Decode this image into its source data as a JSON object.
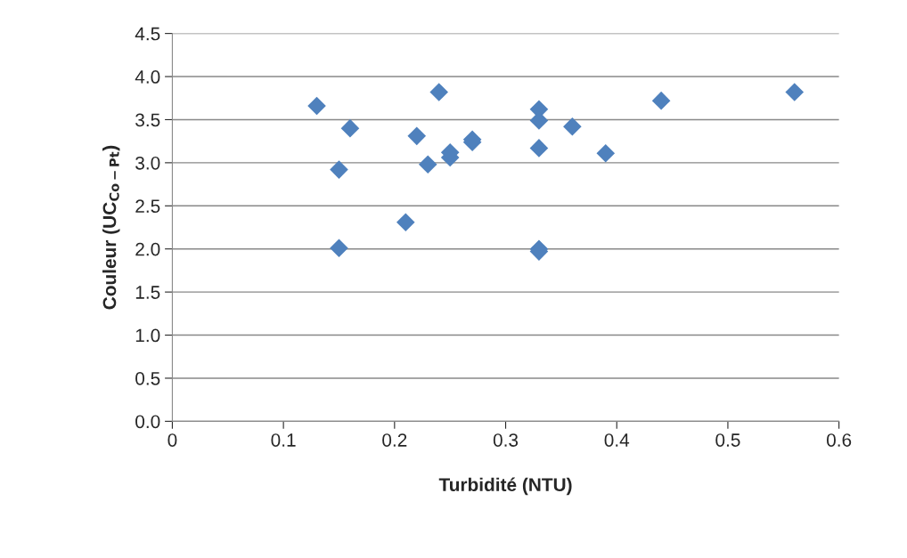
{
  "chart_data": {
    "type": "scatter",
    "xlabel": "Turbidité (NTU)",
    "ylabel": "Couleur (UC$_{Co−Pt}$)",
    "marker": "diamond",
    "grid": "y",
    "legend": false,
    "xlim": [
      0,
      0.6
    ],
    "xticks": [
      0,
      0.1,
      0.2,
      0.3,
      0.4,
      0.5,
      0.6
    ],
    "ylim": [
      0,
      4.5
    ],
    "yticks": [
      {
        "value": 0,
        "label": "0.0"
      },
      {
        "value": 0.5,
        "label": "0.5"
      },
      {
        "value": 1,
        "label": "1.0"
      },
      {
        "value": 1.5,
        "label": "1.5"
      },
      {
        "value": 2,
        "label": "2.0"
      },
      {
        "value": 2.5,
        "label": "2.5"
      },
      {
        "value": 3,
        "label": "3.0"
      },
      {
        "value": 3.5,
        "label": "3.5"
      },
      {
        "value": 4,
        "label": "4.0"
      },
      {
        "value": 4.5,
        "label": "4.5"
      }
    ],
    "series": [
      {
        "color": "#4f81bd",
        "x": [
          0.13,
          0.15,
          0.16,
          0.15,
          0.21,
          0.22,
          0.23,
          0.24,
          0.25,
          0.25,
          0.27,
          0.27,
          0.33,
          0.33,
          0.33,
          0.33,
          0.33,
          0.36,
          0.39,
          0.44,
          0.56
        ],
        "values": [
          3.66,
          2.92,
          3.4,
          2.01,
          2.31,
          3.31,
          2.98,
          3.82,
          3.06,
          3.12,
          3.24,
          3.27,
          3.62,
          3.49,
          3.17,
          2.0,
          1.97,
          3.42,
          3.11,
          3.72,
          3.82
        ]
      }
    ]
  }
}
